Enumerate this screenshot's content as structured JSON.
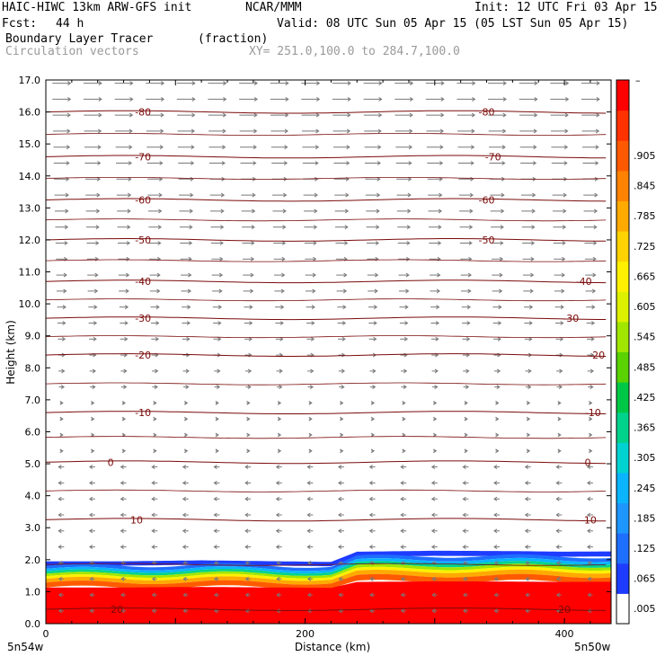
{
  "header": {
    "model": "HAIC-HIWC 13km ARW-GFS init",
    "org": "NCAR/MMM",
    "init": "Init: 12 UTC Fri 03 Apr 15",
    "fcst_label": "Fcst:",
    "fcst_value": "44 h",
    "valid": "Valid: 08 UTC Sun 05 Apr 15 (05 LST Sun 05 Apr 15)",
    "field": "Boundary Layer Tracer",
    "field_units": "(fraction)",
    "vectors": "Circulation vectors",
    "xy": "XY= 251.0,100.0 to 284.7,100.0"
  },
  "chart_data": {
    "type": "heatmap",
    "xlabel": "Distance (km)",
    "ylabel": "Height (km)",
    "xlim": [
      0,
      436
    ],
    "ylim": [
      0,
      17
    ],
    "x_ticks": [
      "0",
      "200",
      "400"
    ],
    "y_ticks": [
      "0.0",
      "1.0",
      "2.0",
      "3.0",
      "4.0",
      "5.0",
      "6.0",
      "7.0",
      "8.0",
      "9.0",
      "10.0",
      "11.0",
      "12.0",
      "13.0",
      "14.0",
      "15.0",
      "16.0",
      "17.0"
    ],
    "x_endpoints": [
      "5n54w",
      "5n50w"
    ],
    "colorbar_labels": [
      ".005",
      ".065",
      ".125",
      ".185",
      ".245",
      ".305",
      ".365",
      ".425",
      ".485",
      ".545",
      ".605",
      ".665",
      ".725",
      ".785",
      ".845",
      ".905"
    ],
    "colorbar_top_label": "–",
    "colorbar_colors": [
      "#ffffff",
      "#1e3cff",
      "#1e6eff",
      "#1e96ff",
      "#0ab4ff",
      "#00d2d2",
      "#00d28c",
      "#00c846",
      "#5ad200",
      "#a0e600",
      "#dcf000",
      "#fff000",
      "#ffd200",
      "#ffaa00",
      "#ff8200",
      "#ff5a00",
      "#ff3200",
      "#ff0000"
    ],
    "temperature_contours": [
      {
        "label": "20",
        "height_km": 0.45
      },
      {
        "label": "10",
        "height_km": 3.25
      },
      {
        "label": "0",
        "height_km": 5.05
      },
      {
        "label": "-10",
        "height_km": 6.6
      },
      {
        "label": "-20",
        "height_km": 8.4
      },
      {
        "label": "-30",
        "height_km": 9.55
      },
      {
        "label": "-40",
        "height_km": 10.7
      },
      {
        "label": "-50",
        "height_km": 12.0
      },
      {
        "label": "-60",
        "height_km": 13.25
      },
      {
        "label": "-70",
        "height_km": 14.6
      },
      {
        "label": "-80",
        "height_km": 16.0
      }
    ],
    "tracer_top_km": [
      1.95,
      1.95,
      1.98,
      1.95,
      1.93,
      2.25,
      2.28,
      2.27,
      2.25,
      2.26
    ],
    "tracer_top_x_km": [
      0,
      60,
      120,
      180,
      220,
      240,
      300,
      360,
      400,
      436
    ],
    "grid": false,
    "colors": {
      "contour": "#7a0a0a",
      "vector": "#787878",
      "frame": "#000000"
    }
  }
}
